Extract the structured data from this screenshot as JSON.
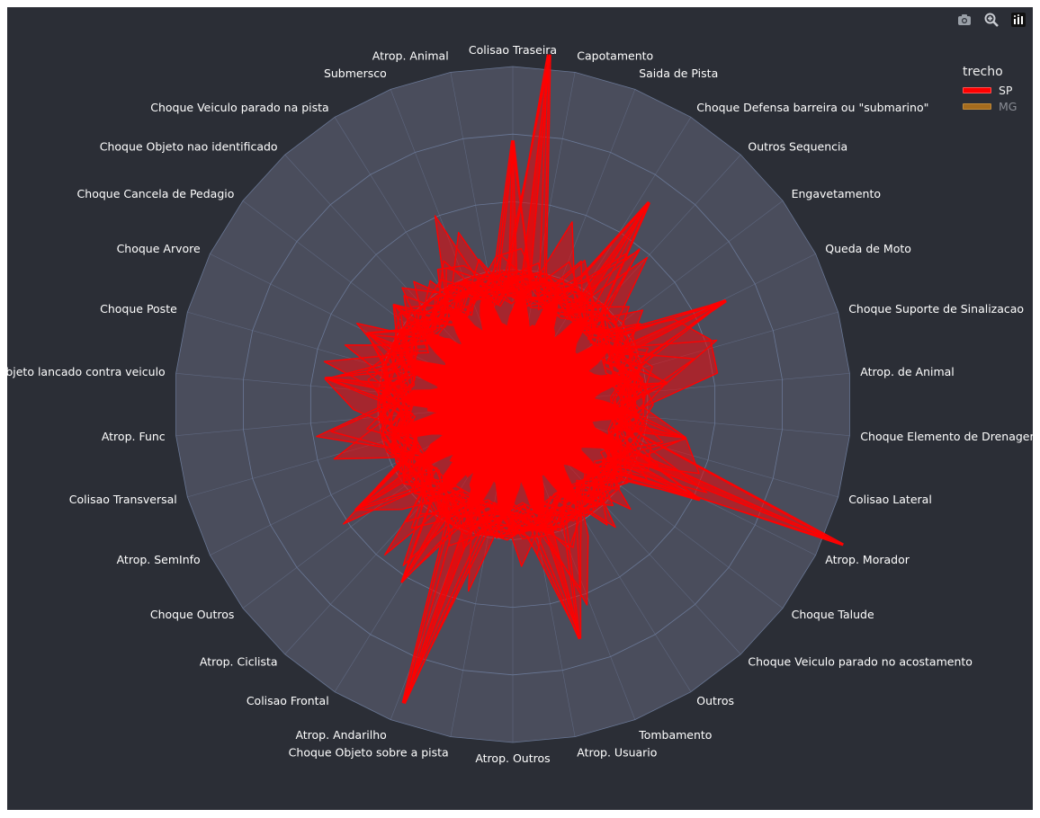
{
  "modebar": {
    "icons": [
      "camera-icon",
      "zoom-icon",
      "plotly-logo-icon"
    ]
  },
  "legend": {
    "title": "trecho",
    "items": [
      {
        "label": "SP",
        "color": "#ff0000",
        "active": true
      },
      {
        "label": "MG",
        "color": "#a56b1d",
        "active": false
      }
    ]
  },
  "colors": {
    "background": "#2b2e36",
    "polar_bg": "#4a4d5c",
    "grid": "#6a7896",
    "series_fill": "#ff0000"
  },
  "chart_data": {
    "type": "radar",
    "categories": [
      "Colisao Traseira",
      "Capotamento",
      "Saida de Pista",
      "Choque Defensa barreira ou \"submarino\"",
      "Outros Sequencia",
      "Engavetamento",
      "Queda de Moto",
      "Choque Suporte de Sinalizacao",
      "Atrop. de Animal",
      "Choque Elemento de Drenagem",
      "Colisao Lateral",
      "Atrop. Morador",
      "Choque Talude",
      "Choque Veiculo parado no acostamento",
      "Outros",
      "Tombamento",
      "Atrop. Usuario",
      "Atrop. Outros",
      "Choque Objeto sobre a pista",
      "Atrop. Andarilho",
      "Colisao Frontal",
      "Atrop. Ciclista",
      "Choque Outros",
      "Atrop. SemInfo",
      "Colisao Transversal",
      "Atrop. Func",
      "Objeto lancado contra veiculo",
      "Choque Poste",
      "Choque Arvore",
      "Choque Cancela de Pedagio",
      "Choque Objeto nao identificado",
      "Choque Veiculo parado na pista",
      "Submersco",
      "Atrop. Animal"
    ],
    "radial_range": [
      0,
      5
    ],
    "grid_rings": 5,
    "series": [
      {
        "name": "SP",
        "color": "#ff0000",
        "peaks": [
          {
            "angle_deg": 0,
            "r": 3.9
          },
          {
            "angle_deg": 6,
            "r": 5.2
          },
          {
            "angle_deg": 34,
            "r": 3.6
          },
          {
            "angle_deg": 64,
            "r": 3.5
          },
          {
            "angle_deg": 82,
            "r": 2.3
          },
          {
            "angle_deg": 101,
            "r": 2.6
          },
          {
            "angle_deg": 113,
            "r": 5.3
          },
          {
            "angle_deg": 117,
            "r": 3.1
          },
          {
            "angle_deg": 164,
            "r": 3.6
          },
          {
            "angle_deg": 200,
            "r": 4.7
          },
          {
            "angle_deg": 212,
            "r": 3.1
          },
          {
            "angle_deg": 236,
            "r": 2.8
          },
          {
            "angle_deg": 278,
            "r": 2.8
          },
          {
            "angle_deg": 296,
            "r": 2.4
          },
          {
            "angle_deg": 310,
            "r": 2.3
          }
        ]
      },
      {
        "name": "MG",
        "color": "#a56b1d",
        "peaks": []
      }
    ]
  }
}
